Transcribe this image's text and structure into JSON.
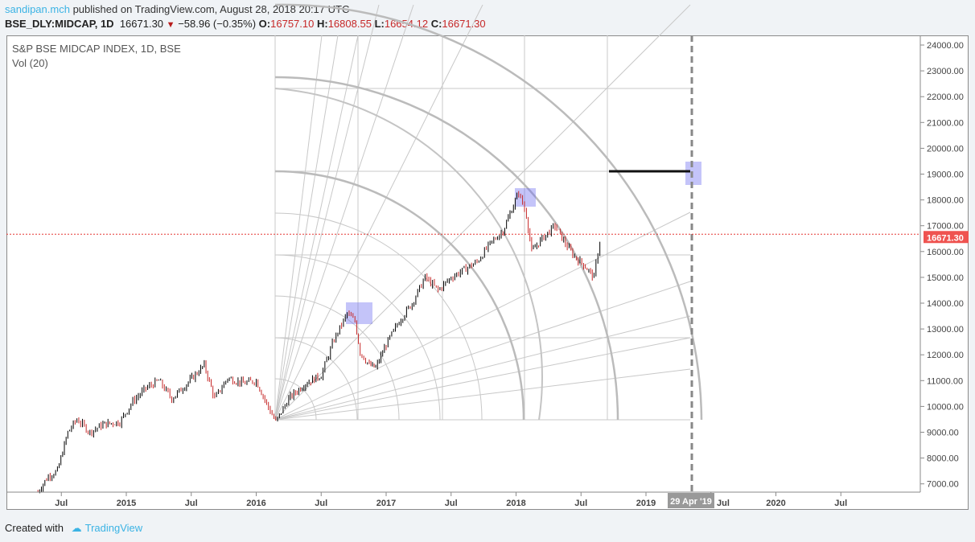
{
  "header": {
    "user": "sandipan.mch",
    "published": "published on TradingView.com, August 28, 2018 20:17 UTC",
    "symbol": "BSE_DLY:MIDCAP, 1D",
    "last": "16671.30",
    "change": "−58.96 (−0.35%)",
    "o_label": "O:",
    "o": "16757.10",
    "h_label": "H:",
    "h": "16808.55",
    "l_label": "L:",
    "l": "16654.12",
    "c_label": "C:",
    "c": "16671.30"
  },
  "legend": {
    "title": "S&P BSE MIDCAP INDEX, 1D, BSE",
    "vol": "Vol (20)"
  },
  "footer": {
    "created": "Created with",
    "brand": "TradingView"
  },
  "colors": {
    "up": "#000000",
    "down": "#c62828",
    "last_line": "#e53935",
    "accent": "#3bb3e4"
  },
  "chart_data": {
    "type": "line",
    "title": "S&P BSE MIDCAP INDEX, 1D, BSE",
    "ylim": [
      6700,
      24300
    ],
    "y_ticks": [
      "24000.00",
      "23000.00",
      "22000.00",
      "21000.00",
      "20000.00",
      "19000.00",
      "18000.00",
      "17000.00",
      "16000.00",
      "15000.00",
      "14000.00",
      "13000.00",
      "12000.00",
      "11000.00",
      "10000.00",
      "9000.00",
      "8000.00",
      "7000.00"
    ],
    "x_ticks": [
      {
        "t": 2014.5,
        "label": "Jul"
      },
      {
        "t": 2015,
        "label": "2015"
      },
      {
        "t": 2015.5,
        "label": "Jul"
      },
      {
        "t": 2016,
        "label": "2016"
      },
      {
        "t": 2016.5,
        "label": "Jul"
      },
      {
        "t": 2017,
        "label": "2017"
      },
      {
        "t": 2017.5,
        "label": "Jul"
      },
      {
        "t": 2018,
        "label": "2018"
      },
      {
        "t": 2018.5,
        "label": "Jul"
      },
      {
        "t": 2019,
        "label": "2019"
      },
      {
        "t": 2019.5,
        "label": "Jul"
      },
      {
        "t": 2020,
        "label": "2020"
      },
      {
        "t": 2020.5,
        "label": "Jul"
      }
    ],
    "last_price_label": "16671.30",
    "last_price": 16671.3,
    "cursor_date_label": "29 Apr '19",
    "series": [
      {
        "name": "MIDCAP",
        "points": [
          [
            2014.32,
            6700
          ],
          [
            2014.4,
            7300
          ],
          [
            2014.47,
            7500
          ],
          [
            2014.55,
            9000
          ],
          [
            2014.62,
            9500
          ],
          [
            2014.72,
            9000
          ],
          [
            2014.82,
            9300
          ],
          [
            2014.95,
            9400
          ],
          [
            2015.05,
            10200
          ],
          [
            2015.15,
            10700
          ],
          [
            2015.25,
            11000
          ],
          [
            2015.35,
            10300
          ],
          [
            2015.45,
            10800
          ],
          [
            2015.6,
            11600
          ],
          [
            2015.68,
            10300
          ],
          [
            2015.78,
            11100
          ],
          [
            2015.9,
            10900
          ],
          [
            2016.0,
            11000
          ],
          [
            2016.08,
            10100
          ],
          [
            2016.15,
            9400
          ],
          [
            2016.25,
            10300
          ],
          [
            2016.38,
            10900
          ],
          [
            2016.5,
            11200
          ],
          [
            2016.6,
            12600
          ],
          [
            2016.7,
            13600
          ],
          [
            2016.76,
            13300
          ],
          [
            2016.8,
            12100
          ],
          [
            2016.87,
            11600
          ],
          [
            2016.92,
            11500
          ],
          [
            2017.0,
            12400
          ],
          [
            2017.1,
            13300
          ],
          [
            2017.2,
            14000
          ],
          [
            2017.3,
            15000
          ],
          [
            2017.4,
            14500
          ],
          [
            2017.5,
            15000
          ],
          [
            2017.6,
            15300
          ],
          [
            2017.7,
            15600
          ],
          [
            2017.8,
            16300
          ],
          [
            2017.9,
            16800
          ],
          [
            2017.98,
            17800
          ],
          [
            2018.02,
            18300
          ],
          [
            2018.08,
            17400
          ],
          [
            2018.12,
            16000
          ],
          [
            2018.2,
            16500
          ],
          [
            2018.3,
            17000
          ],
          [
            2018.38,
            16300
          ],
          [
            2018.45,
            15800
          ],
          [
            2018.52,
            15500
          ],
          [
            2018.6,
            15000
          ],
          [
            2018.63,
            16000
          ],
          [
            2018.66,
            16671.3
          ]
        ]
      }
    ]
  }
}
